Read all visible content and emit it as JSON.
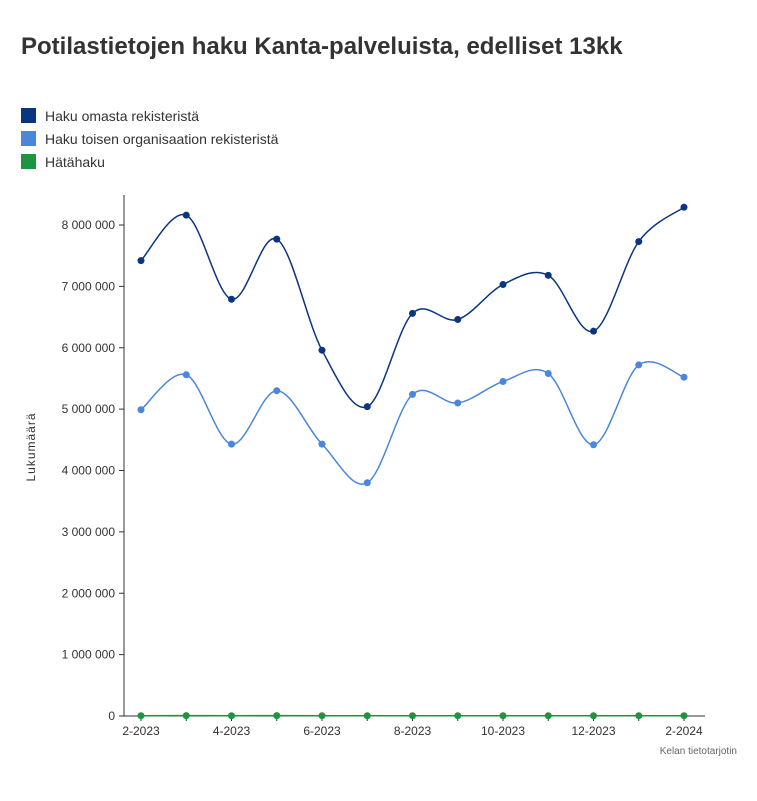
{
  "title": "Potilastietojen haku Kanta-palveluista, edelliset 13kk",
  "source": "Kelan tietotarjotin",
  "chart_data": {
    "type": "line",
    "title": "Potilastietojen haku Kanta-palveluista, edelliset 13kk",
    "xlabel": "",
    "ylabel": "Lukumäärä",
    "x": [
      "2-2023",
      "3-2023",
      "4-2023",
      "5-2023",
      "6-2023",
      "7-2023",
      "8-2023",
      "9-2023",
      "10-2023",
      "11-2023",
      "12-2023",
      "1-2024",
      "2-2024"
    ],
    "xtick_labels": [
      "2-2023",
      "4-2023",
      "6-2023",
      "8-2023",
      "10-2023",
      "12-2023",
      "2-2024"
    ],
    "ylim": [
      0,
      8500000
    ],
    "yticks": [
      0,
      1000000,
      2000000,
      3000000,
      4000000,
      5000000,
      6000000,
      7000000,
      8000000
    ],
    "ytick_labels": [
      "0",
      "1 000 000",
      "2 000 000",
      "3 000 000",
      "4 000 000",
      "5 000 000",
      "6 000 000",
      "7 000 000",
      "8 000 000"
    ],
    "grid": false,
    "legend_position": "top-left",
    "series": [
      {
        "name": "Haku omasta rekisteristä",
        "color": "#0a3580",
        "values": [
          7420000,
          8160000,
          6790000,
          7770000,
          5960000,
          5040000,
          6560000,
          6460000,
          7030000,
          7180000,
          6270000,
          7730000,
          8290000
        ]
      },
      {
        "name": "Haku toisen organisaation rekisteristä",
        "color": "#4a86dc",
        "values": [
          4990000,
          5560000,
          4430000,
          5300000,
          4430000,
          3800000,
          5240000,
          5100000,
          5450000,
          5580000,
          4420000,
          5720000,
          5520000
        ]
      },
      {
        "name": "Hätähaku",
        "color": "#1a9641",
        "values": [
          5000,
          6000,
          5000,
          6000,
          5000,
          4000,
          5000,
          5000,
          5000,
          5000,
          5000,
          5000,
          5000
        ]
      }
    ]
  }
}
